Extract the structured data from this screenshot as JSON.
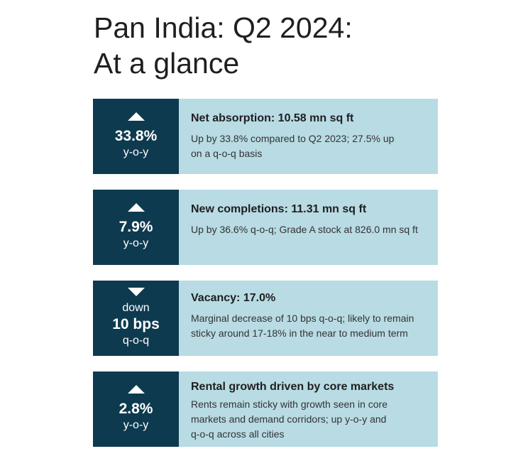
{
  "title": {
    "line1": "Pan India: Q2 2024:",
    "line2": "At a glance"
  },
  "cards": [
    {
      "direction": "up",
      "prefix": "",
      "value": "33.8%",
      "unit": "y-o-y",
      "heading": "Net absorption: 10.58 mn sq ft",
      "description": "Up by 33.8% compared to Q2 2023; 27.5% up on a q-o-q basis"
    },
    {
      "direction": "up",
      "prefix": "",
      "value": "7.9%",
      "unit": "y-o-y",
      "heading": "New completions: 11.31 mn sq ft",
      "description": "Up by 36.6% q-o-q; Grade A stock at 826.0 mn sq ft"
    },
    {
      "direction": "down",
      "prefix": "down",
      "value": "10 bps",
      "unit": "q-o-q",
      "heading": "Vacancy: 17.0%",
      "description": "Marginal decrease of 10 bps q-o-q; likely to remain sticky around 17-18% in the near to medium term"
    },
    {
      "direction": "up",
      "prefix": "",
      "value": "2.8%",
      "unit": "y-o-y",
      "heading": "Rental growth driven by core markets",
      "description": "Rents remain sticky with growth seen in core markets and demand corridors; up y-o-y and q-o-q across all cities"
    }
  ],
  "colors": {
    "dark_panel": "#0e3a4f",
    "light_panel": "#b8dbe4"
  }
}
